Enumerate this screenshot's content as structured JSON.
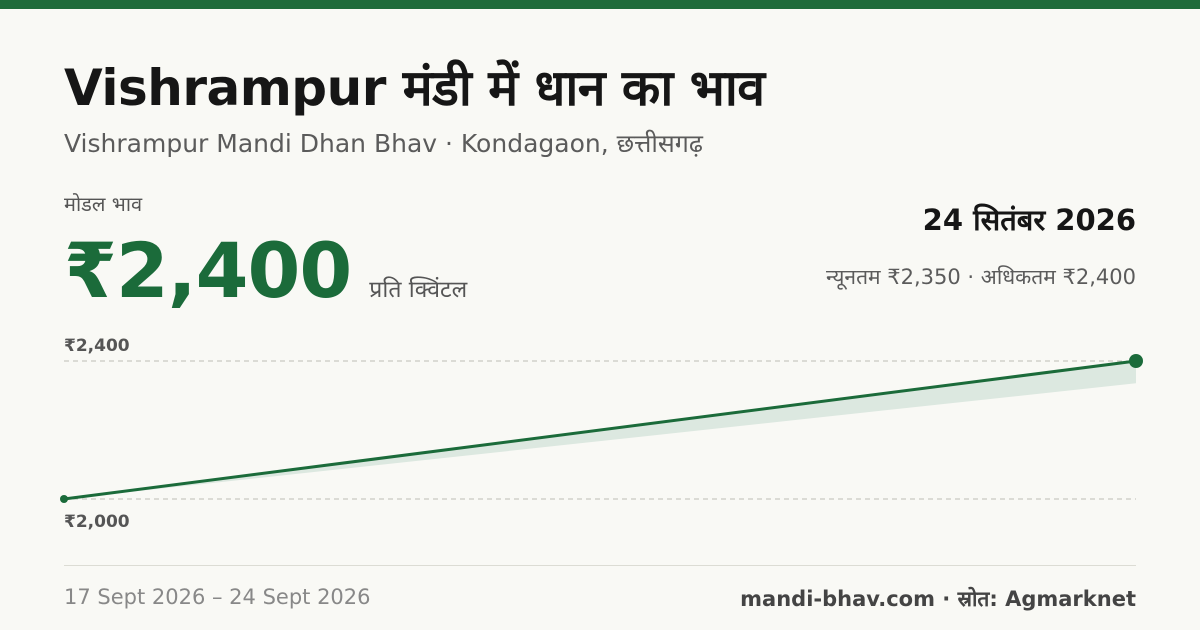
{
  "title": "Vishrampur मंडी में धान का भाव",
  "subtitle": "Vishrampur Mandi Dhan Bhav · Kondagaon, छत्तीसगढ़",
  "modal_label": "मोडल भाव",
  "modal_price": "₹2,400",
  "unit": "प्रति क्विंटल",
  "date": "24 सितंबर 2026",
  "min_max": "न्यूनतम ₹2,350 · अधिकतम ₹2,400",
  "date_range": "17 Sept 2026 – 24 Sept 2026",
  "source": "mandi-bhav.com · स्रोत: Agmarknet",
  "colors": {
    "accent": "#1b6b3a",
    "band": "#dce8e0",
    "background": "#f9f9f5"
  },
  "chart_data": {
    "type": "line",
    "x": [
      "17 Sept 2026",
      "24 Sept 2026"
    ],
    "series": [
      {
        "values": [
          2000,
          2400
        ]
      }
    ],
    "band": {
      "low": [
        2000,
        2350
      ],
      "high": [
        2000,
        2400
      ]
    },
    "yticks": [
      {
        "value": 2400,
        "label": "₹2,400"
      },
      {
        "value": 2000,
        "label": "₹2,000"
      }
    ],
    "ylim": [
      2000,
      2400
    ],
    "grid": true,
    "title": "",
    "xlabel": "",
    "ylabel": ""
  }
}
